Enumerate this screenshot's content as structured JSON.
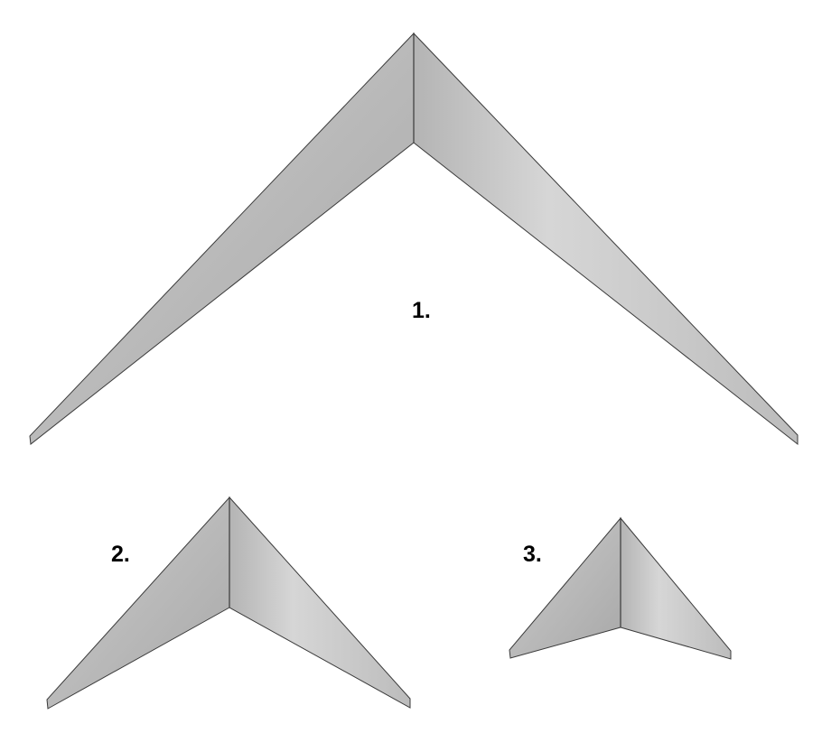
{
  "figure": {
    "shapes": [
      {
        "label": "1."
      },
      {
        "label": "2."
      },
      {
        "label": "3."
      }
    ],
    "colors": {
      "background": "#ffffff",
      "face_light": "#d2d2d2",
      "face_mid": "#bdbdbd",
      "face_dark": "#a9a9a9",
      "edge": "#3a3a3a",
      "label": "#000000"
    }
  }
}
